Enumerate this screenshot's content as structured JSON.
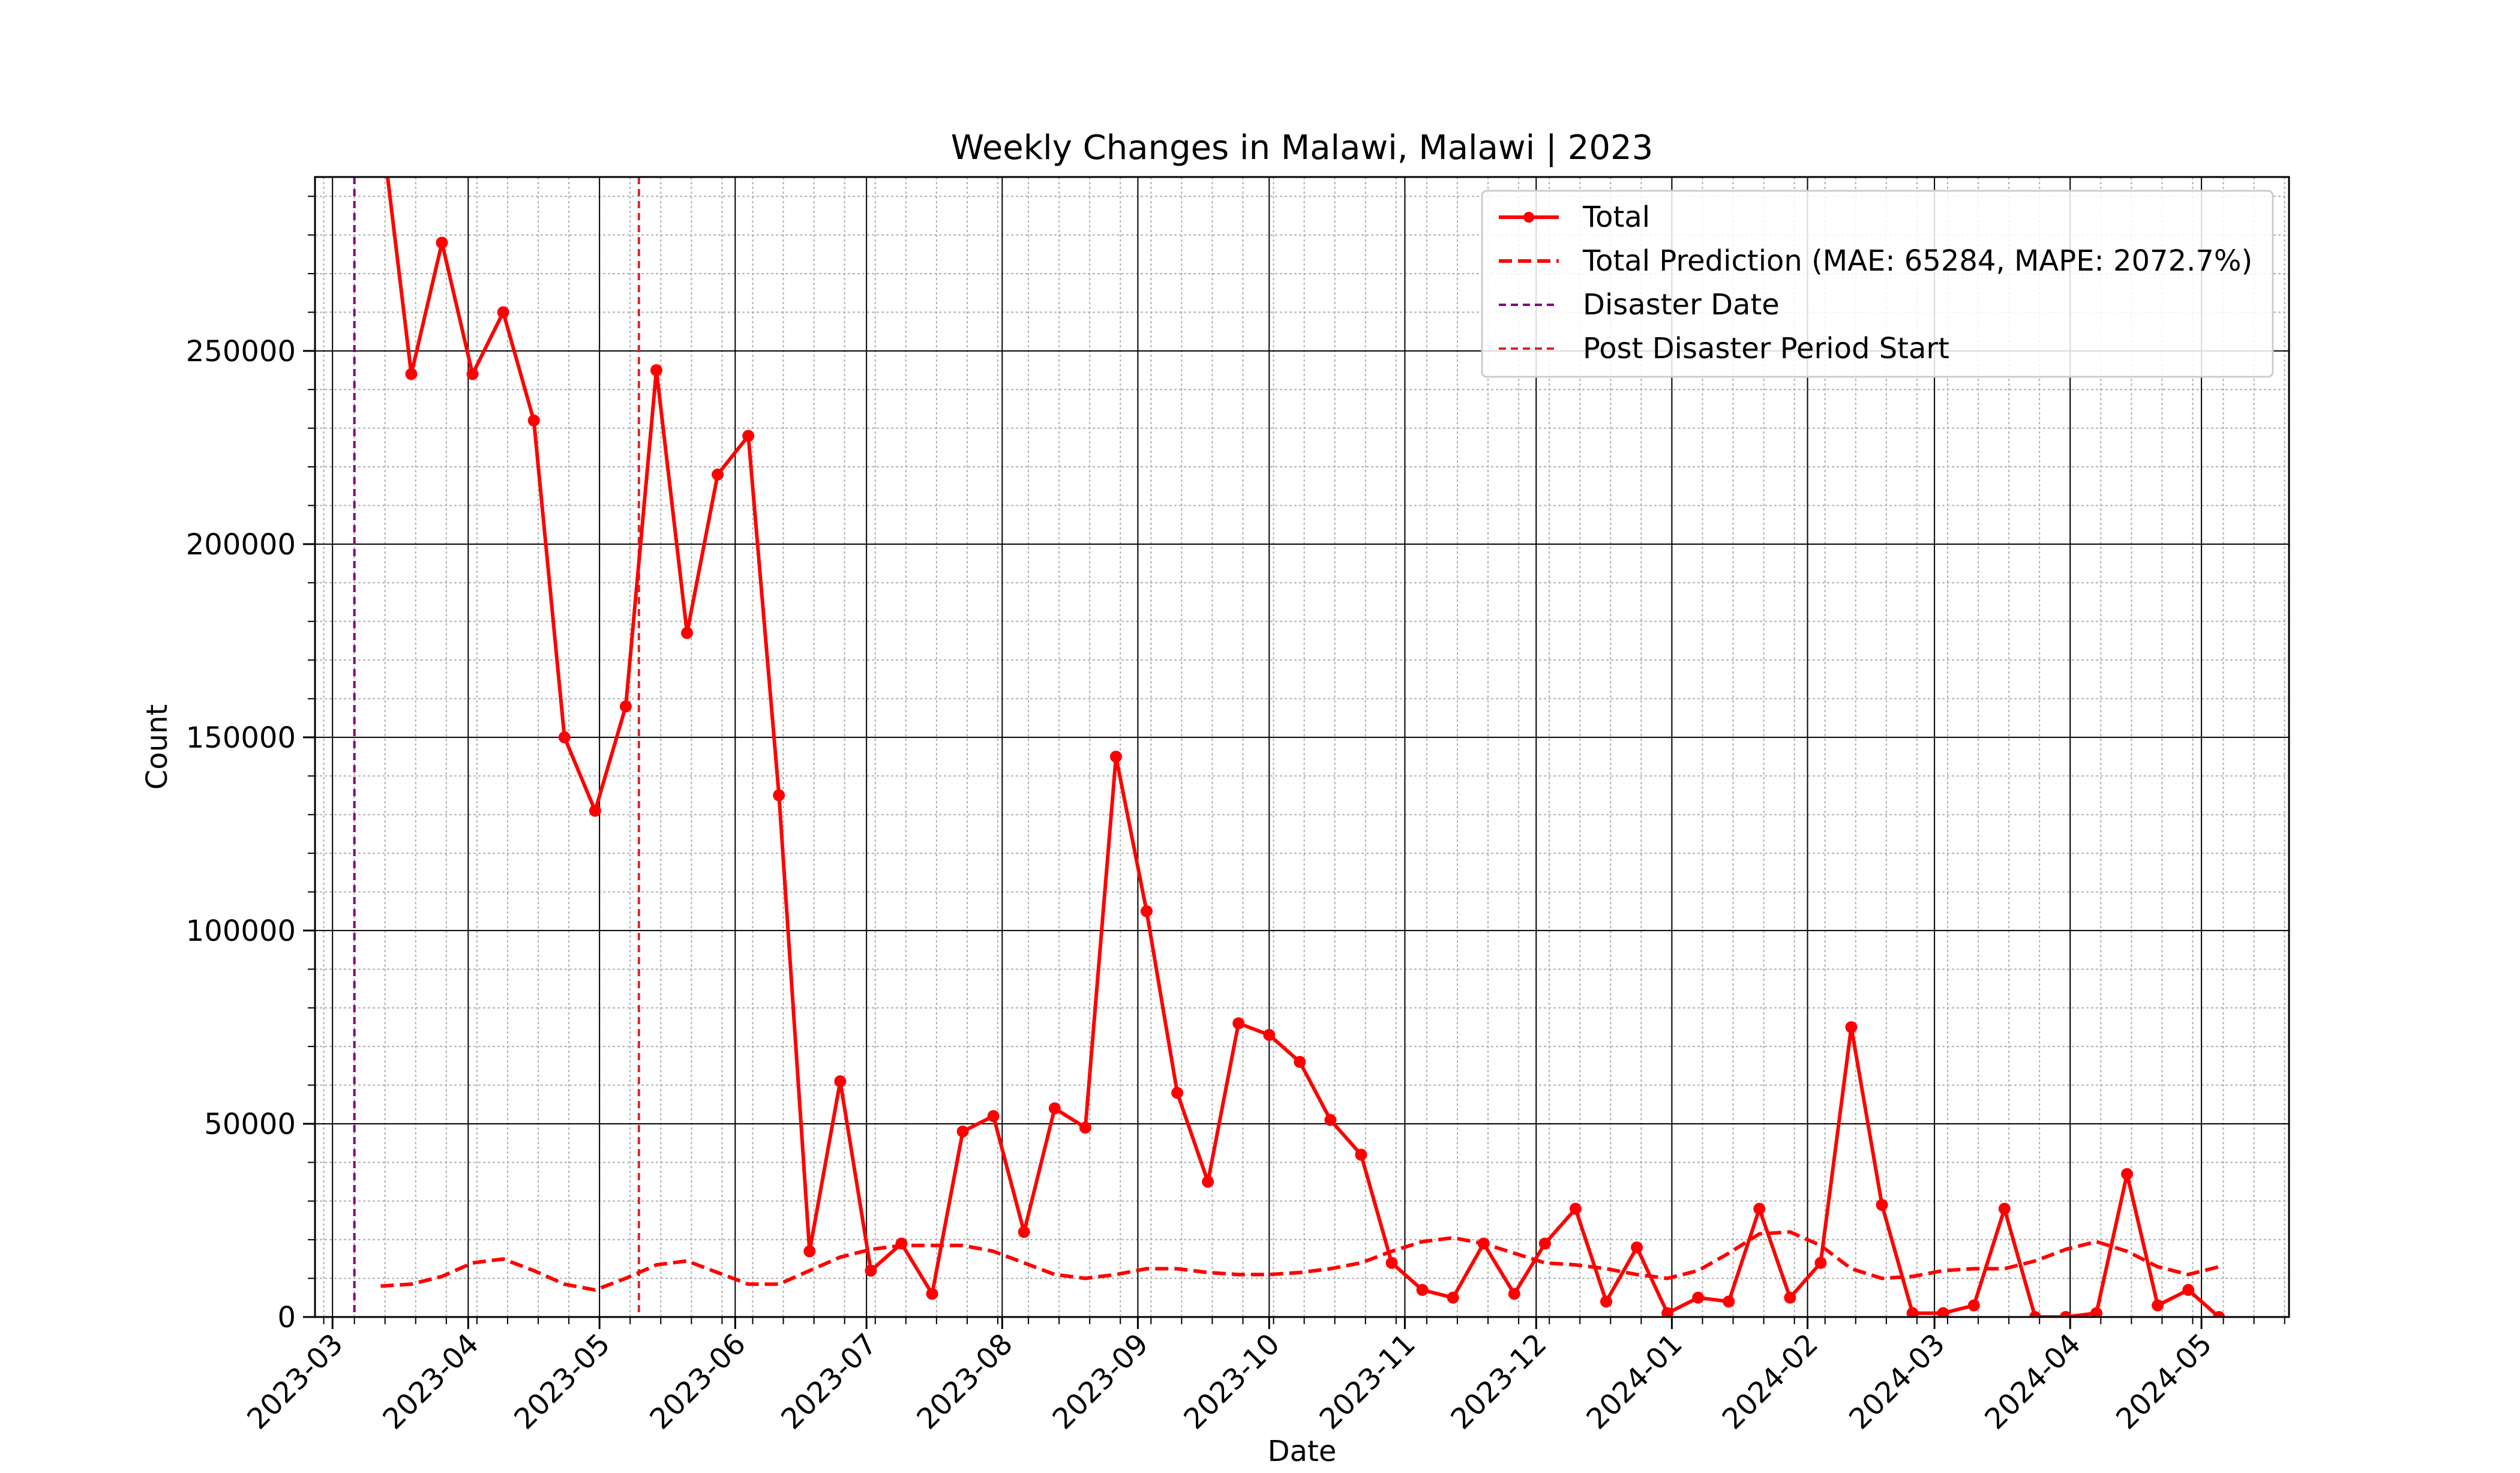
{
  "chart_data": {
    "type": "line",
    "title": "Weekly Changes in Malawi, Malawi | 2023",
    "xlabel": "Date",
    "ylabel": "Count",
    "xlim": [
      "2023-02-25",
      "2024-05-21"
    ],
    "ylim": [
      0,
      295000
    ],
    "y_ticks": [
      0,
      50000,
      100000,
      150000,
      200000,
      250000
    ],
    "y_tick_labels": [
      "0",
      "50000",
      "100000",
      "150000",
      "200000",
      "250000"
    ],
    "x_ticks": [
      "2023-03-01",
      "2023-04-01",
      "2023-05-01",
      "2023-06-01",
      "2023-07-01",
      "2023-08-01",
      "2023-09-01",
      "2023-10-01",
      "2023-11-01",
      "2023-12-01",
      "2024-01-01",
      "2024-02-01",
      "2024-03-01",
      "2024-04-01",
      "2024-05-01"
    ],
    "x_tick_labels": [
      "2023-03",
      "2023-04",
      "2023-05",
      "2023-06",
      "2023-07",
      "2023-08",
      "2023-09",
      "2023-10",
      "2023-11",
      "2023-12",
      "2024-01",
      "2024-02",
      "2024-03",
      "2024-04",
      "2024-05"
    ],
    "grid": "major and minor",
    "legend_position": "top-right",
    "series": [
      {
        "name": "Total",
        "style": "solid-with-markers",
        "color": "#ff0000",
        "x": [
          "2023-03-12",
          "2023-03-19",
          "2023-03-26",
          "2023-04-02",
          "2023-04-09",
          "2023-04-16",
          "2023-04-23",
          "2023-04-30",
          "2023-05-07",
          "2023-05-14",
          "2023-05-21",
          "2023-05-28",
          "2023-06-04",
          "2023-06-11",
          "2023-06-18",
          "2023-06-25",
          "2023-07-02",
          "2023-07-09",
          "2023-07-16",
          "2023-07-23",
          "2023-07-30",
          "2023-08-06",
          "2023-08-13",
          "2023-08-20",
          "2023-08-27",
          "2023-09-03",
          "2023-09-10",
          "2023-09-17",
          "2023-09-24",
          "2023-10-01",
          "2023-10-08",
          "2023-10-15",
          "2023-10-22",
          "2023-10-29",
          "2023-11-05",
          "2023-11-12",
          "2023-11-19",
          "2023-11-26",
          "2023-12-03",
          "2023-12-10",
          "2023-12-17",
          "2023-12-24",
          "2023-12-31",
          "2024-01-07",
          "2024-01-14",
          "2024-01-21",
          "2024-01-28",
          "2024-02-04",
          "2024-02-11",
          "2024-02-18",
          "2024-02-25",
          "2024-03-03",
          "2024-03-10",
          "2024-03-17",
          "2024-03-24",
          "2024-03-31",
          "2024-04-07",
          "2024-04-14",
          "2024-04-21",
          "2024-04-28",
          "2024-05-05"
        ],
        "values": [
          310000,
          244000,
          278000,
          244000,
          260000,
          232000,
          150000,
          131000,
          158000,
          245000,
          177000,
          218000,
          228000,
          135000,
          17000,
          61000,
          12000,
          19000,
          6000,
          48000,
          52000,
          22000,
          54000,
          49000,
          145000,
          105000,
          58000,
          35000,
          76000,
          73000,
          66000,
          51000,
          42000,
          14000,
          7000,
          5000,
          19000,
          6000,
          19000,
          28000,
          4000,
          18000,
          1000,
          5000,
          4000,
          28000,
          5000,
          14000,
          75000,
          29000,
          1000,
          1000,
          3000,
          28000,
          0,
          0,
          1000,
          37000,
          3000,
          7000,
          0
        ]
      },
      {
        "name": "Total Prediction (MAE: 65284, MAPE: 2072.7%)",
        "style": "dashed",
        "color": "#ff0000",
        "x": [
          "2023-03-12",
          "2023-03-19",
          "2023-03-26",
          "2023-04-02",
          "2023-04-09",
          "2023-04-16",
          "2023-04-23",
          "2023-04-30",
          "2023-05-07",
          "2023-05-14",
          "2023-05-21",
          "2023-05-28",
          "2023-06-04",
          "2023-06-11",
          "2023-06-18",
          "2023-06-25",
          "2023-07-02",
          "2023-07-09",
          "2023-07-16",
          "2023-07-23",
          "2023-07-30",
          "2023-08-06",
          "2023-08-13",
          "2023-08-20",
          "2023-08-27",
          "2023-09-03",
          "2023-09-10",
          "2023-09-17",
          "2023-09-24",
          "2023-10-01",
          "2023-10-08",
          "2023-10-15",
          "2023-10-22",
          "2023-10-29",
          "2023-11-05",
          "2023-11-12",
          "2023-11-19",
          "2023-11-26",
          "2023-12-03",
          "2023-12-10",
          "2023-12-17",
          "2023-12-24",
          "2023-12-31",
          "2024-01-07",
          "2024-01-14",
          "2024-01-21",
          "2024-01-28",
          "2024-02-04",
          "2024-02-11",
          "2024-02-18",
          "2024-02-25",
          "2024-03-03",
          "2024-03-10",
          "2024-03-17",
          "2024-03-24",
          "2024-03-31",
          "2024-04-07",
          "2024-04-14",
          "2024-04-21",
          "2024-04-28",
          "2024-05-05"
        ],
        "values": [
          8000,
          8500,
          10500,
          14000,
          15000,
          12000,
          8500,
          7000,
          10000,
          13500,
          14500,
          11500,
          8500,
          8500,
          12000,
          15500,
          17500,
          18500,
          18500,
          18500,
          17000,
          14000,
          11000,
          10000,
          11000,
          12500,
          12500,
          11500,
          11000,
          11000,
          11500,
          12500,
          14000,
          17000,
          19500,
          20500,
          19000,
          16500,
          14000,
          13500,
          12500,
          11000,
          10000,
          12000,
          16500,
          21500,
          22000,
          18500,
          12500,
          10000,
          10500,
          12000,
          12500,
          12500,
          14500,
          17500,
          19500,
          17000,
          13000,
          11000,
          13000
        ]
      }
    ],
    "vertical_lines": [
      {
        "name": "Disaster Date",
        "x": "2023-03-06",
        "color": "#800080",
        "style": "dashed"
      },
      {
        "name": "Post Disaster Period Start",
        "x": "2023-05-10",
        "color": "#d62728",
        "style": "dashed"
      }
    ]
  }
}
